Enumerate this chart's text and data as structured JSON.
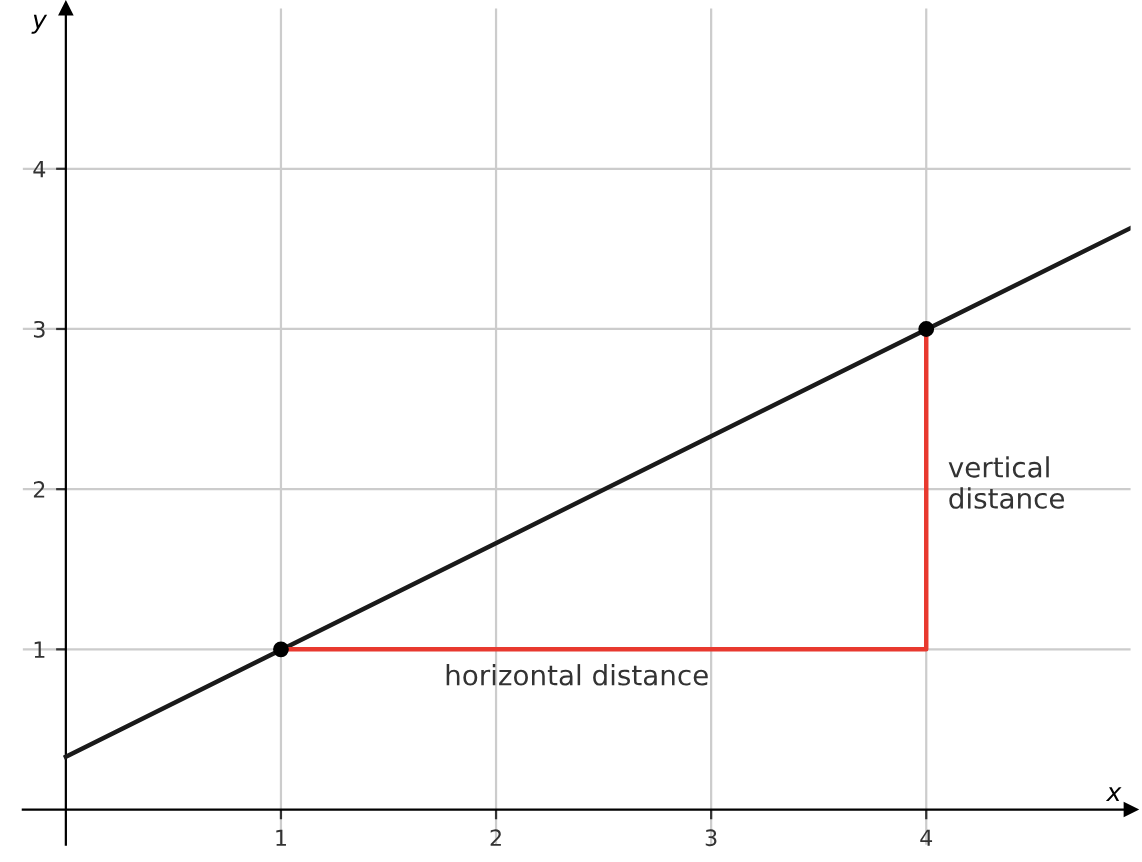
{
  "chart_data": {
    "type": "line",
    "xlabel": "x",
    "ylabel": "y",
    "xlim": [
      -0.2,
      4.95
    ],
    "ylim": [
      -0.22,
      5.0
    ],
    "xticks": [
      1,
      2,
      3,
      4
    ],
    "yticks": [
      1,
      2,
      3,
      4
    ],
    "grid": true,
    "series": [
      {
        "color": "#1a1a1a",
        "x": [
          0,
          4.95
        ],
        "values": [
          0.33,
          3.63
        ]
      },
      {
        "color": "#e8392f",
        "x": [
          1,
          4,
          4
        ],
        "values": [
          1,
          1,
          3
        ]
      },
      {
        "type": "scatter",
        "color": "#000000",
        "x": [
          1,
          4
        ],
        "values": [
          1,
          3
        ],
        "marker": "circle"
      }
    ],
    "annotations": [
      "horizontal distance",
      "vertical\ndistance"
    ]
  }
}
